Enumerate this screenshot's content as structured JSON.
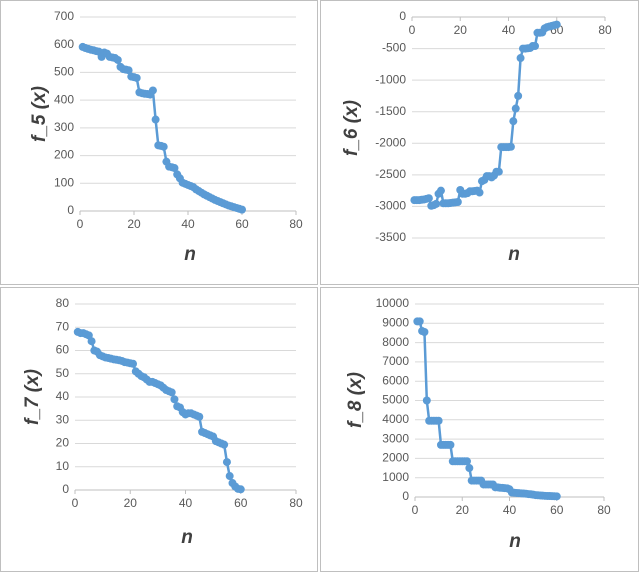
{
  "chart_data": [
    {
      "type": "line",
      "ylabel": "f_5 (x)",
      "xlabel": "n",
      "color": "#5b9bd5",
      "grid": true,
      "xlim": [
        0,
        80
      ],
      "xticks": [
        0,
        20,
        40,
        60,
        80
      ],
      "ylim": [
        0,
        700
      ],
      "yticks": [
        0,
        100,
        200,
        300,
        400,
        500,
        600,
        700
      ],
      "x": [
        1,
        2,
        3,
        4,
        5,
        6,
        7,
        8,
        9,
        10,
        11,
        12,
        13,
        14,
        15,
        16,
        17,
        18,
        19,
        20,
        21,
        22,
        23,
        24,
        25,
        26,
        27,
        28,
        29,
        30,
        31,
        32,
        33,
        34,
        35,
        36,
        37,
        38,
        39,
        40,
        41,
        42,
        43,
        44,
        45,
        46,
        47,
        48,
        49,
        50,
        51,
        52,
        53,
        54,
        55,
        56,
        57,
        58,
        59,
        60
      ],
      "values": [
        592,
        588,
        585,
        582,
        580,
        577,
        575,
        556,
        572,
        568,
        556,
        554,
        552,
        545,
        520,
        512,
        510,
        508,
        485,
        483,
        480,
        428,
        425,
        423,
        422,
        420,
        435,
        330,
        237,
        235,
        232,
        178,
        160,
        158,
        155,
        132,
        118,
        102,
        98,
        94,
        90,
        86,
        78,
        72,
        66,
        60,
        55,
        50,
        45,
        40,
        36,
        32,
        28,
        24,
        20,
        17,
        14,
        11,
        8,
        5
      ]
    },
    {
      "type": "line",
      "ylabel": "f_6 (x)",
      "xlabel": "n",
      "color": "#5b9bd5",
      "grid": true,
      "xlim": [
        0,
        80
      ],
      "xticks": [
        0,
        20,
        40,
        60,
        80
      ],
      "ylim": [
        -3500,
        0
      ],
      "yticks": [
        -3500,
        -3000,
        -2500,
        -2000,
        -1500,
        -1000,
        -500,
        0
      ],
      "x": [
        1,
        2,
        3,
        4,
        5,
        6,
        7,
        8,
        9,
        10,
        11,
        12,
        13,
        14,
        15,
        16,
        17,
        18,
        19,
        20,
        21,
        22,
        23,
        24,
        25,
        26,
        27,
        28,
        29,
        30,
        31,
        32,
        33,
        34,
        35,
        36,
        37,
        38,
        39,
        40,
        41,
        42,
        43,
        44,
        45,
        46,
        47,
        48,
        49,
        50,
        51,
        52,
        53,
        54,
        55,
        56,
        57,
        58,
        59,
        60
      ],
      "values": [
        -2900,
        -2900,
        -2900,
        -2895,
        -2890,
        -2880,
        -2870,
        -2990,
        -2980,
        -2960,
        -2800,
        -2750,
        -2950,
        -2950,
        -2950,
        -2945,
        -2940,
        -2935,
        -2930,
        -2740,
        -2800,
        -2800,
        -2790,
        -2760,
        -2760,
        -2755,
        -2750,
        -2780,
        -2600,
        -2580,
        -2520,
        -2520,
        -2540,
        -2510,
        -2450,
        -2450,
        -2060,
        -2060,
        -2060,
        -2060,
        -2055,
        -1650,
        -1450,
        -1250,
        -650,
        -500,
        -500,
        -495,
        -490,
        -460,
        -460,
        -250,
        -250,
        -245,
        -180,
        -160,
        -150,
        -140,
        -130,
        -120
      ]
    },
    {
      "type": "line",
      "ylabel": "f_7 (x)",
      "xlabel": "n",
      "color": "#5b9bd5",
      "grid": true,
      "xlim": [
        0,
        80
      ],
      "xticks": [
        0,
        20,
        40,
        60,
        80
      ],
      "ylim": [
        0,
        80
      ],
      "yticks": [
        0,
        10,
        20,
        30,
        40,
        50,
        60,
        70,
        80
      ],
      "x": [
        1,
        2,
        3,
        4,
        5,
        6,
        7,
        8,
        9,
        10,
        11,
        12,
        13,
        14,
        15,
        16,
        17,
        18,
        19,
        20,
        21,
        22,
        23,
        24,
        25,
        26,
        27,
        28,
        29,
        30,
        31,
        32,
        33,
        34,
        35,
        36,
        37,
        38,
        39,
        40,
        41,
        42,
        43,
        44,
        45,
        46,
        47,
        48,
        49,
        50,
        51,
        52,
        53,
        54,
        55,
        56,
        57,
        58,
        59,
        60
      ],
      "values": [
        68,
        67.5,
        67.5,
        67,
        66.5,
        64,
        60,
        59.5,
        58,
        57.5,
        57,
        56.8,
        56.5,
        56.2,
        56,
        55.8,
        55.5,
        55,
        54.8,
        54.5,
        54.3,
        51,
        50,
        49,
        48.5,
        47.5,
        46.5,
        46.5,
        46,
        45.5,
        45,
        44,
        43,
        42.5,
        42,
        39,
        36,
        35.5,
        33.5,
        32.5,
        33,
        33,
        32.5,
        32,
        31.5,
        25,
        24.5,
        24,
        23.5,
        23,
        21,
        20.5,
        20,
        19.5,
        12,
        6,
        3,
        1.5,
        0.5,
        0.3
      ]
    },
    {
      "type": "line",
      "ylabel": "f_8 (x)",
      "xlabel": "n",
      "color": "#5b9bd5",
      "grid": true,
      "xlim": [
        0,
        80
      ],
      "xticks": [
        0,
        20,
        40,
        60,
        80
      ],
      "ylim": [
        0,
        10000
      ],
      "yticks": [
        0,
        1000,
        2000,
        3000,
        4000,
        5000,
        6000,
        7000,
        8000,
        9000,
        10000
      ],
      "x": [
        1,
        2,
        3,
        4,
        5,
        6,
        7,
        8,
        9,
        10,
        11,
        12,
        13,
        14,
        15,
        16,
        17,
        18,
        19,
        20,
        21,
        22,
        23,
        24,
        25,
        26,
        27,
        28,
        29,
        30,
        31,
        32,
        33,
        34,
        35,
        36,
        37,
        38,
        39,
        40,
        41,
        42,
        43,
        44,
        45,
        46,
        47,
        48,
        49,
        50,
        51,
        52,
        53,
        54,
        55,
        56,
        57,
        58,
        59,
        60
      ],
      "values": [
        9100,
        9100,
        8600,
        8550,
        5000,
        3950,
        3950,
        3950,
        3950,
        3950,
        2700,
        2700,
        2700,
        2700,
        2700,
        1850,
        1850,
        1850,
        1850,
        1850,
        1850,
        1850,
        1500,
        850,
        850,
        850,
        850,
        850,
        650,
        650,
        650,
        650,
        650,
        500,
        500,
        480,
        470,
        460,
        450,
        400,
        230,
        220,
        210,
        200,
        190,
        180,
        170,
        150,
        140,
        120,
        100,
        90,
        80,
        70,
        60,
        55,
        50,
        45,
        40,
        35
      ]
    }
  ]
}
